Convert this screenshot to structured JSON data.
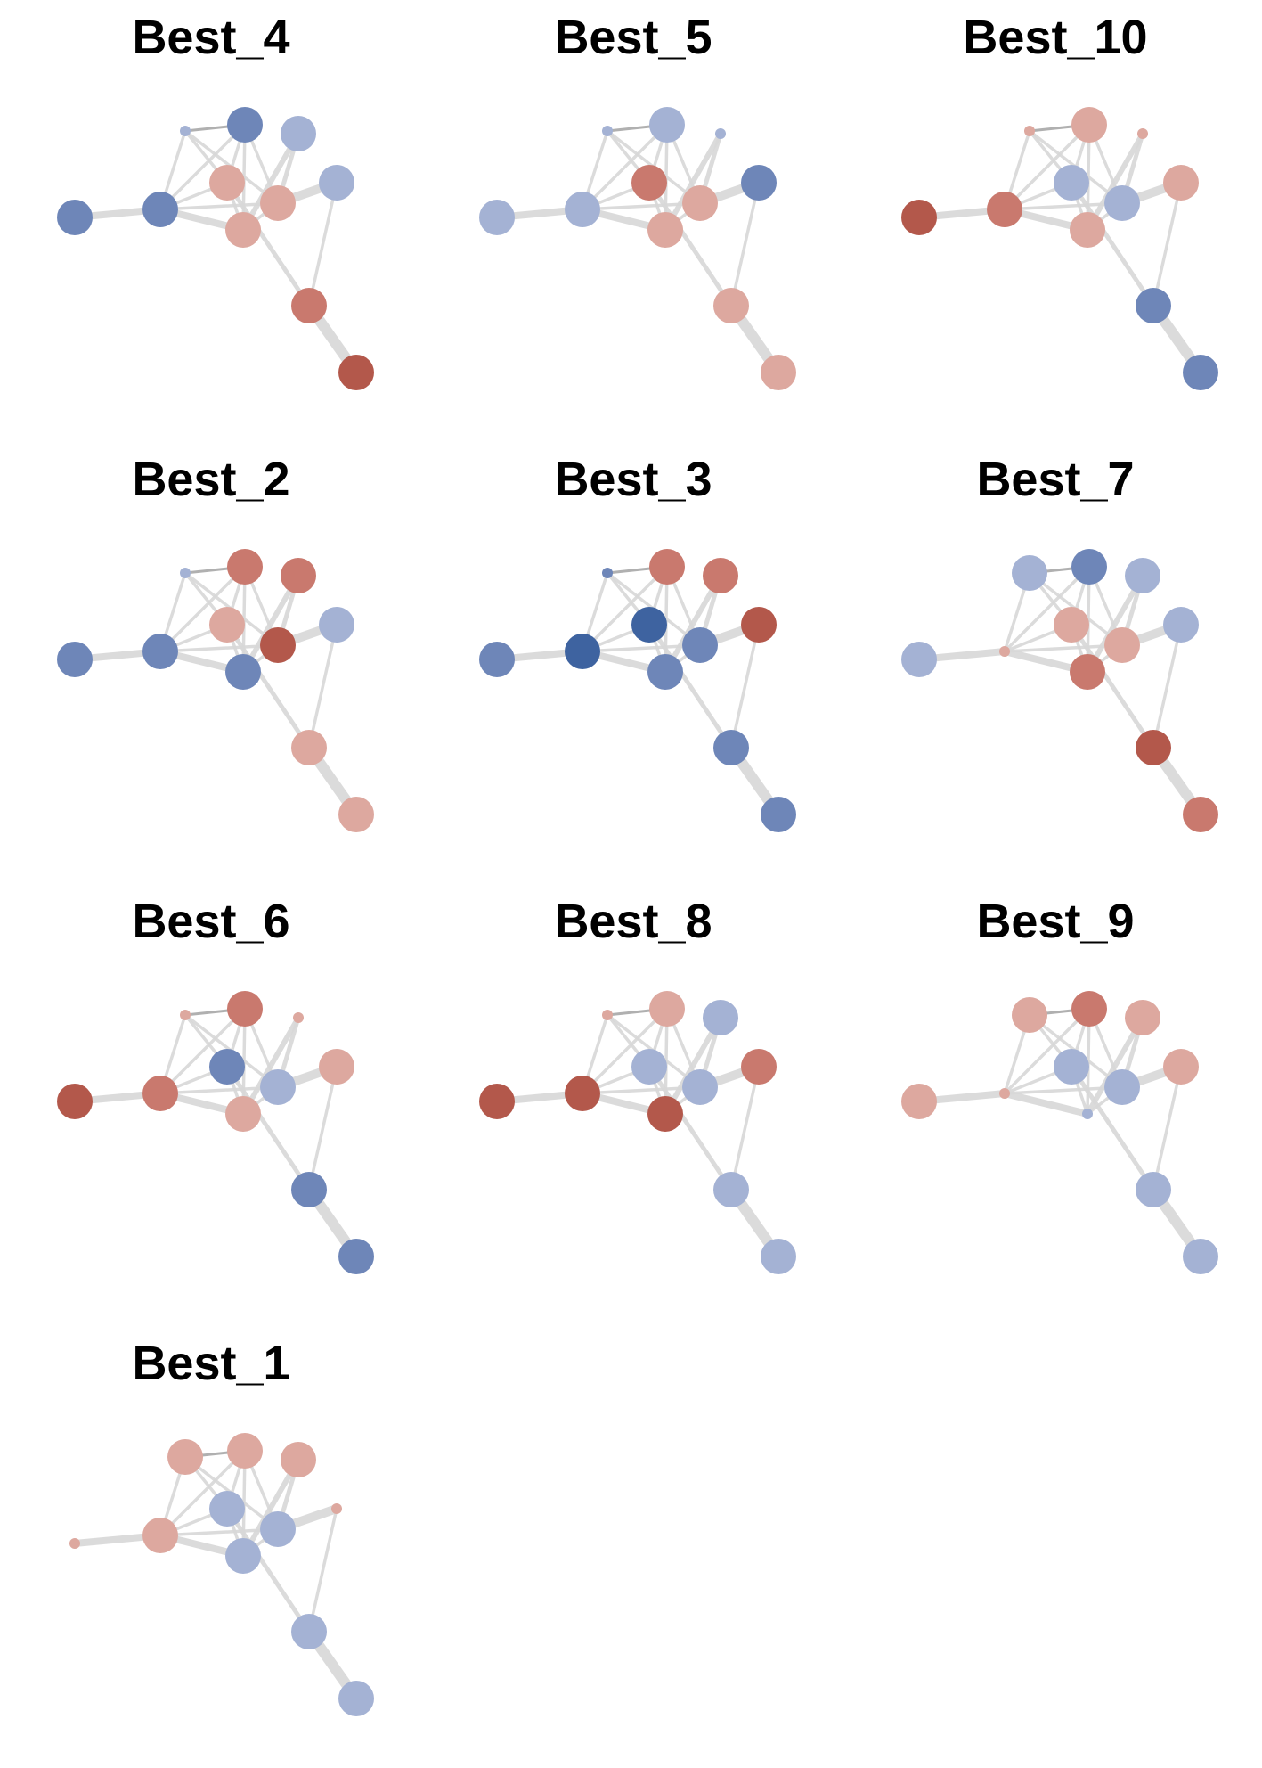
{
  "figure": {
    "type": "network-diagram-small-multiples",
    "colors": {
      "edge": "#d8d8d8",
      "edge_dark": "#a8a8a8",
      "blue_strong": "#3e63a0",
      "blue_mid": "#6e86b8",
      "blue_light": "#a4b2d4",
      "red_strong": "#b3584b",
      "red_mid": "#c9796e",
      "red_light": "#dda89f"
    },
    "node_ids": [
      "A",
      "B",
      "C",
      "D",
      "E",
      "F",
      "G",
      "H",
      "I",
      "J",
      "K"
    ],
    "edges": [
      [
        "A",
        "B"
      ],
      [
        "B",
        "C"
      ],
      [
        "B",
        "E"
      ],
      [
        "B",
        "D"
      ],
      [
        "B",
        "F"
      ],
      [
        "B",
        "G"
      ],
      [
        "C",
        "D"
      ],
      [
        "C",
        "E"
      ],
      [
        "D",
        "E"
      ],
      [
        "D",
        "G"
      ],
      [
        "E",
        "G"
      ],
      [
        "E",
        "J"
      ],
      [
        "D",
        "F"
      ],
      [
        "F",
        "G"
      ],
      [
        "G",
        "H"
      ],
      [
        "F",
        "H"
      ],
      [
        "F",
        "I"
      ],
      [
        "I",
        "J"
      ],
      [
        "J",
        "K"
      ],
      [
        "C",
        "F"
      ]
    ],
    "panels": [
      {
        "title": "Best_4",
        "nodes": {
          "A": "blue_mid",
          "B": "blue_mid",
          "C": "blue_light_s",
          "D": "blue_mid",
          "E": "red_light",
          "F": "red_light",
          "G": "red_light",
          "H": "blue_light",
          "I": "blue_light",
          "J": "red_mid",
          "K": "red_strong"
        }
      },
      {
        "title": "Best_5",
        "nodes": {
          "A": "blue_light",
          "B": "blue_light",
          "C": "blue_light_s",
          "D": "blue_light",
          "E": "red_mid",
          "F": "red_light",
          "G": "red_light",
          "H": "blue_light_s",
          "I": "blue_mid",
          "J": "red_light",
          "K": "red_light"
        }
      },
      {
        "title": "Best_10",
        "nodes": {
          "A": "red_strong",
          "B": "red_mid",
          "C": "red_light_s",
          "D": "red_light",
          "E": "blue_light",
          "F": "blue_light",
          "G": "red_light",
          "H": "red_light_s",
          "I": "red_light",
          "J": "blue_mid",
          "K": "blue_mid"
        }
      },
      {
        "title": "Best_2",
        "nodes": {
          "A": "blue_mid",
          "B": "blue_mid",
          "C": "blue_light_s",
          "D": "red_mid",
          "E": "red_light",
          "F": "red_strong",
          "G": "blue_mid",
          "H": "red_mid",
          "I": "blue_light",
          "J": "red_light",
          "K": "red_light"
        }
      },
      {
        "title": "Best_3",
        "nodes": {
          "A": "blue_mid",
          "B": "blue_strong",
          "C": "blue_mid_s",
          "D": "red_mid",
          "E": "blue_strong",
          "F": "blue_mid",
          "G": "blue_mid",
          "H": "red_mid",
          "I": "red_strong",
          "J": "blue_mid",
          "K": "blue_mid"
        }
      },
      {
        "title": "Best_7",
        "nodes": {
          "A": "blue_light",
          "B": "red_light_s",
          "C": "blue_light",
          "D": "blue_mid",
          "E": "red_light",
          "F": "red_light",
          "G": "red_mid",
          "H": "blue_light",
          "I": "blue_light",
          "J": "red_strong",
          "K": "red_mid"
        }
      },
      {
        "title": "Best_6",
        "nodes": {
          "A": "red_strong",
          "B": "red_mid",
          "C": "red_light_s",
          "D": "red_mid",
          "E": "blue_mid",
          "F": "blue_light",
          "G": "red_light",
          "H": "red_light_s",
          "I": "red_light",
          "J": "blue_mid",
          "K": "blue_mid"
        }
      },
      {
        "title": "Best_8",
        "nodes": {
          "A": "red_strong",
          "B": "red_strong",
          "C": "red_light_s",
          "D": "red_light",
          "E": "blue_light",
          "F": "blue_light",
          "G": "red_strong",
          "H": "blue_light",
          "I": "red_mid",
          "J": "blue_light",
          "K": "blue_light"
        }
      },
      {
        "title": "Best_9",
        "nodes": {
          "A": "red_light",
          "B": "red_light_s",
          "C": "red_light",
          "D": "red_mid",
          "E": "blue_light",
          "F": "blue_light",
          "G": "blue_light_s",
          "H": "red_light",
          "I": "red_light",
          "J": "blue_light",
          "K": "blue_light"
        }
      },
      {
        "title": "Best_1",
        "nodes": {
          "A": "red_light_s",
          "B": "red_light",
          "C": "red_light",
          "D": "red_light",
          "E": "blue_light",
          "F": "blue_light",
          "G": "blue_light",
          "H": "red_light",
          "I": "red_light_s",
          "J": "blue_light",
          "K": "blue_light"
        }
      }
    ]
  }
}
